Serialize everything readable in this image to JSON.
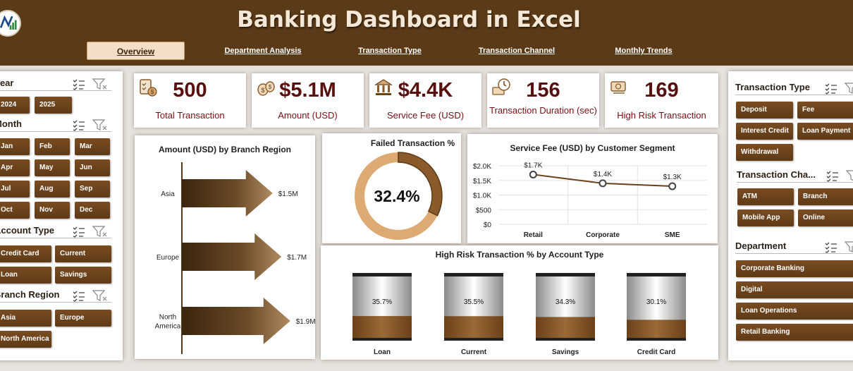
{
  "header": {
    "title": "Banking Dashboard in Excel",
    "nav": [
      {
        "label": "Overview",
        "active": true
      },
      {
        "label": "Department Analysis"
      },
      {
        "label": "Transaction Type"
      },
      {
        "label": "Transaction Channel"
      },
      {
        "label": "Monthly Trends"
      }
    ]
  },
  "left_slicers": {
    "year": {
      "title": "Year",
      "items": [
        "2024",
        "2025"
      ]
    },
    "month": {
      "title": "Month",
      "items": [
        "Jan",
        "Feb",
        "Mar",
        "Apr",
        "May",
        "Jun",
        "Jul",
        "Aug",
        "Sep",
        "Oct",
        "Nov",
        "Dec"
      ]
    },
    "account_type": {
      "title": "Account Type",
      "items": [
        "Credit Card",
        "Current",
        "Loan",
        "Savings"
      ]
    },
    "branch_region": {
      "title": "Branch Region",
      "items": [
        "Asia",
        "Europe",
        "North America"
      ]
    }
  },
  "kpis": [
    {
      "value": "500",
      "label": "Total Transaction",
      "icon": "checklist-coins-icon"
    },
    {
      "value": "$5.1M",
      "label": "Amount (USD)",
      "icon": "money-bags-icon"
    },
    {
      "value": "$4.4K",
      "label": "Service Fee (USD)",
      "icon": "bank-icon"
    },
    {
      "value": "156",
      "label": "Transaction Duration (sec)",
      "icon": "clock-money-icon"
    },
    {
      "value": "169",
      "label": "High Risk Transaction",
      "icon": "cash-alert-icon"
    }
  ],
  "chart_branch": {
    "title": "Amount (USD) by Branch Region",
    "chart_data": {
      "type": "bar",
      "categories": [
        "Asia",
        "Europe",
        "North America"
      ],
      "values": [
        1.5,
        1.7,
        1.9
      ],
      "labels": [
        "$1.5M",
        "$1.7M",
        "$1.9M"
      ]
    }
  },
  "chart_failed": {
    "title": "Failed Transaction %",
    "chart_data": {
      "type": "pie",
      "value": 32.4,
      "label": "32.4%"
    }
  },
  "chart_fee": {
    "title": "Service Fee (USD) by Customer Segment",
    "chart_data": {
      "type": "line",
      "categories": [
        "Retail",
        "Corporate",
        "SME"
      ],
      "values": [
        1.7,
        1.4,
        1.3
      ],
      "labels": [
        "$1.7K",
        "$1.4K",
        "$1.3K"
      ],
      "yticks": [
        "$2.0K",
        "$1.5K",
        "$1.0K",
        "$500",
        "$0"
      ],
      "ylim": [
        0,
        2.0
      ]
    }
  },
  "chart_risk": {
    "title": "High Risk Transaction % by Account Type",
    "chart_data": {
      "type": "bar",
      "categories": [
        "Loan",
        "Current",
        "Savings",
        "Credit Card"
      ],
      "values": [
        35.7,
        35.5,
        34.3,
        30.1
      ],
      "labels": [
        "35.7%",
        "35.5%",
        "34.3%",
        "30.1%"
      ]
    }
  },
  "right_slicers": {
    "transaction_type": {
      "title": "Transaction Type",
      "items": [
        "Deposit",
        "Fee",
        "Interest Credit",
        "Loan Payment",
        "Withdrawal"
      ]
    },
    "transaction_channel": {
      "title": "Transaction Cha...",
      "items": [
        "ATM",
        "Branch",
        "Mobile App",
        "Online"
      ]
    },
    "department": {
      "title": "Department",
      "items": [
        "Corporate Banking",
        "Digital",
        "Loan Operations",
        "Retail Banking"
      ]
    }
  },
  "colors": {
    "header": "#5b3a17",
    "button": "#6b4119",
    "accent": "#d8a46c",
    "kpi_value": "#5a0f0f"
  }
}
